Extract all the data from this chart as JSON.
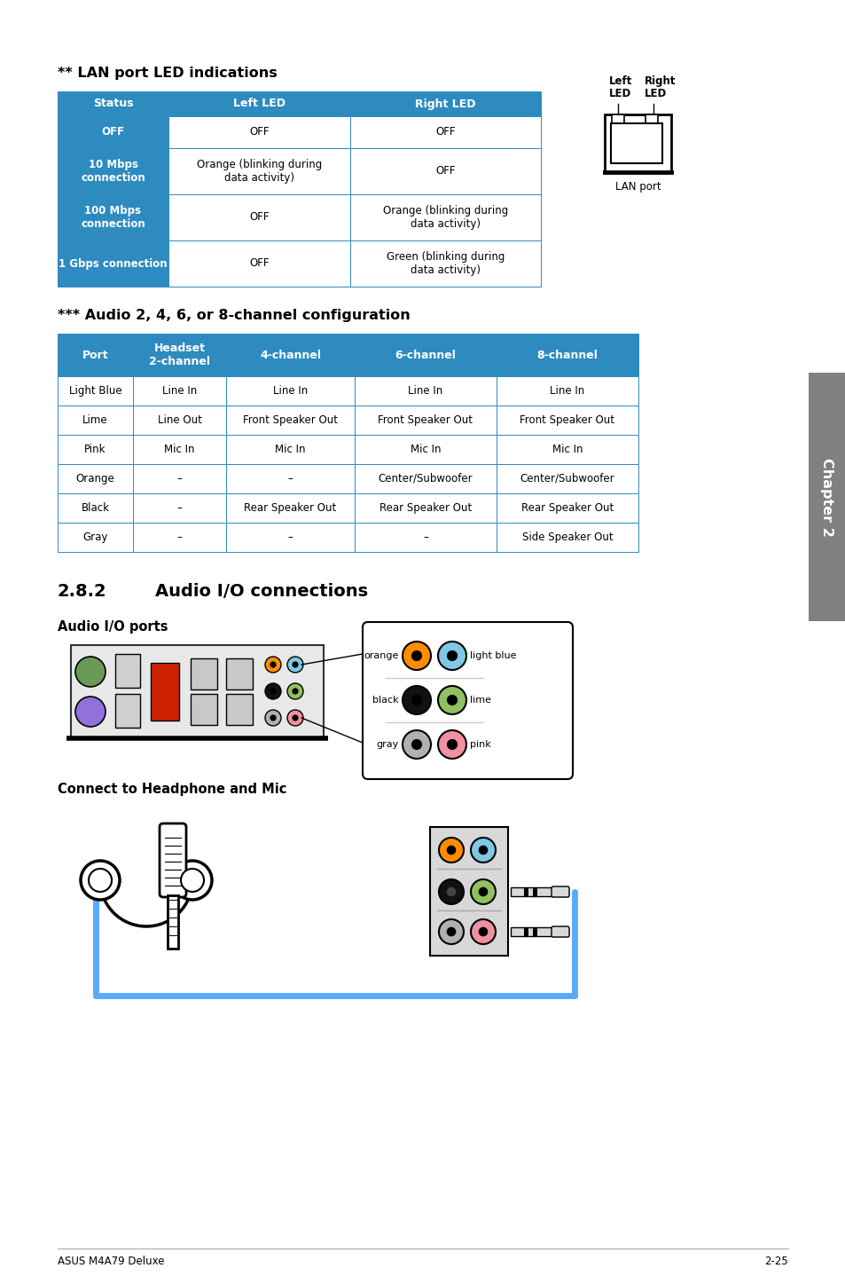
{
  "page_title": "** LAN port LED indications",
  "lan_table": {
    "header": [
      "Status",
      "Left LED",
      "Right LED"
    ],
    "header_color": "#2e8bc0",
    "rows": [
      [
        "OFF",
        "OFF",
        "OFF"
      ],
      [
        "10 Mbps\nconnection",
        "Orange (blinking during\ndata activity)",
        "OFF"
      ],
      [
        "100 Mbps\nconnection",
        "OFF",
        "Orange (blinking during\ndata activity)"
      ],
      [
        "1 Gbps connection",
        "OFF",
        "Green (blinking during\ndata activity)"
      ]
    ]
  },
  "audio_table_title": "*** Audio 2, 4, 6, or 8-channel configuration",
  "audio_table": {
    "header": [
      "Port",
      "Headset\n2-channel",
      "4-channel",
      "6-channel",
      "8-channel"
    ],
    "header_color": "#2e8bc0",
    "rows": [
      [
        "Light Blue",
        "Line In",
        "Line In",
        "Line In",
        "Line In"
      ],
      [
        "Lime",
        "Line Out",
        "Front Speaker Out",
        "Front Speaker Out",
        "Front Speaker Out"
      ],
      [
        "Pink",
        "Mic In",
        "Mic In",
        "Mic In",
        "Mic In"
      ],
      [
        "Orange",
        "–",
        "–",
        "Center/Subwoofer",
        "Center/Subwoofer"
      ],
      [
        "Black",
        "–",
        "Rear Speaker Out",
        "Rear Speaker Out",
        "Rear Speaker Out"
      ],
      [
        "Gray",
        "–",
        "–",
        "–",
        "Side Speaker Out"
      ]
    ]
  },
  "section_282": "2.8.2",
  "section_282_title": "Audio I/O connections",
  "audio_ports_label": "Audio I/O ports",
  "connect_label": "Connect to Headphone and Mic",
  "footer_left": "ASUS M4A79 Deluxe",
  "footer_right": "2-25",
  "chapter_label": "Chapter 2",
  "blue_color": "#2e8bc0",
  "gray_color": "#808080"
}
